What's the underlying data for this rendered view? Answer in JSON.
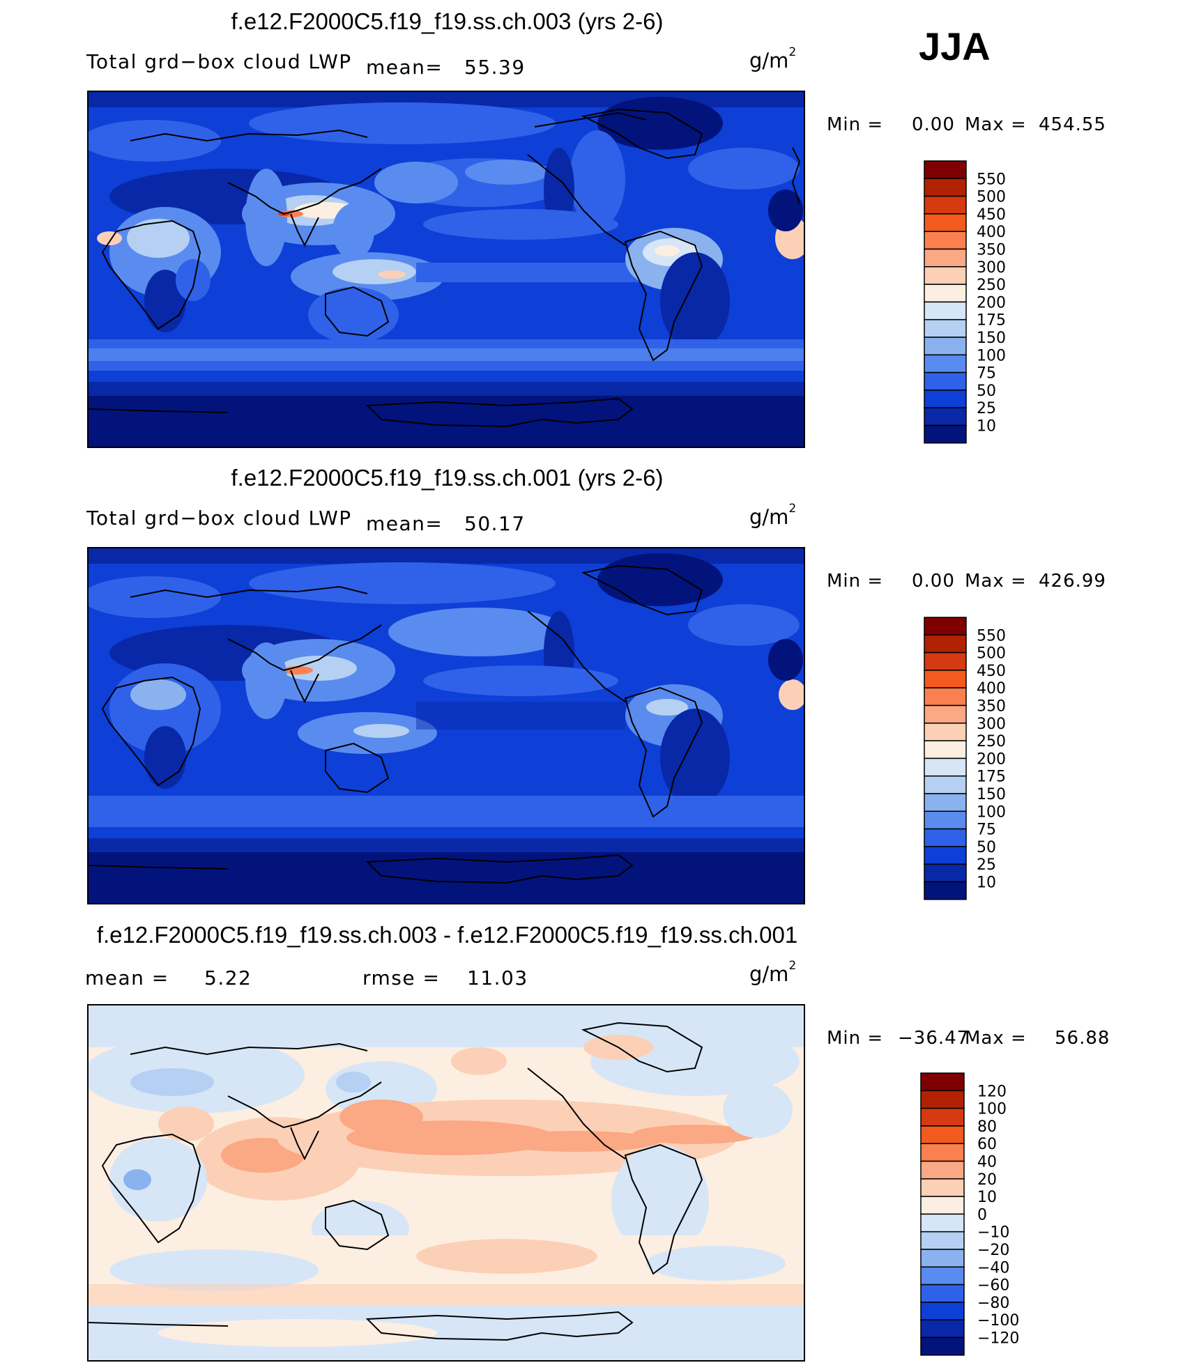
{
  "season": "JJA",
  "chart_data": [
    {
      "type": "heatmap",
      "title": "f.e12.F2000C5.f19_f19.ss.ch.003 (yrs 2-6)",
      "variable": "Total grd−box cloud LWP",
      "mean_label": "mean=",
      "mean_value": "55.39",
      "units": "g/m",
      "units_exp": "2",
      "min_label": "Min  =",
      "min_value": "0.00",
      "max_label": "Max  =",
      "max_value": "454.55",
      "colorbar_levels": [
        "550",
        "500",
        "450",
        "400",
        "350",
        "300",
        "250",
        "200",
        "175",
        "150",
        "100",
        "75",
        "50",
        "25",
        "10"
      ],
      "colorbar_colors": [
        "#7f0000",
        "#b22200",
        "#d63a10",
        "#f25a1e",
        "#fb8050",
        "#fba884",
        "#fcd0b6",
        "#fdeee2",
        "#d6e6f7",
        "#b5d0f2",
        "#8ab2ee",
        "#5a8cef",
        "#2f62e8",
        "#0e3fd6",
        "#0828a7",
        "#03137c"
      ],
      "field_mean": 55.39,
      "field_min": 0.0,
      "field_max": 454.55
    },
    {
      "type": "heatmap",
      "title": "f.e12.F2000C5.f19_f19.ss.ch.001 (yrs 2-6)",
      "variable": "Total grd−box cloud LWP",
      "mean_label": "mean=",
      "mean_value": "50.17",
      "units": "g/m",
      "units_exp": "2",
      "min_label": "Min  =",
      "min_value": "0.00",
      "max_label": "Max  =",
      "max_value": "426.99",
      "colorbar_levels": [
        "550",
        "500",
        "450",
        "400",
        "350",
        "300",
        "250",
        "200",
        "175",
        "150",
        "100",
        "75",
        "50",
        "25",
        "10"
      ],
      "colorbar_colors": [
        "#7f0000",
        "#b22200",
        "#d63a10",
        "#f25a1e",
        "#fb8050",
        "#fba884",
        "#fcd0b6",
        "#fdeee2",
        "#d6e6f7",
        "#b5d0f2",
        "#8ab2ee",
        "#5a8cef",
        "#2f62e8",
        "#0e3fd6",
        "#0828a7",
        "#03137c"
      ],
      "field_mean": 50.17,
      "field_min": 0.0,
      "field_max": 426.99
    },
    {
      "type": "heatmap",
      "title": "f.e12.F2000C5.f19_f19.ss.ch.003 - f.e12.F2000C5.f19_f19.ss.ch.001",
      "mean_label": "mean  =",
      "mean_value": "5.22",
      "rmse_label": "rmse  =",
      "rmse_value": "11.03",
      "units": "g/m",
      "units_exp": "2",
      "min_label": "Min  =",
      "min_value": "−36.47",
      "max_label": "Max  =",
      "max_value": "56.88",
      "colorbar_levels": [
        "120",
        "100",
        "80",
        "60",
        "40",
        "20",
        "10",
        "0",
        "−10",
        "−20",
        "−40",
        "−60",
        "−80",
        "−100",
        "−120"
      ],
      "colorbar_colors": [
        "#7f0000",
        "#b22200",
        "#d63a10",
        "#f25a1e",
        "#fb8050",
        "#fba884",
        "#fcd0b6",
        "#fdeee2",
        "#d6e6f7",
        "#b5d0f2",
        "#8ab2ee",
        "#5a8cef",
        "#2f62e8",
        "#0e3fd6",
        "#0828a7",
        "#03137c"
      ],
      "field_mean": 5.22,
      "field_min": -36.47,
      "field_max": 56.88
    }
  ]
}
